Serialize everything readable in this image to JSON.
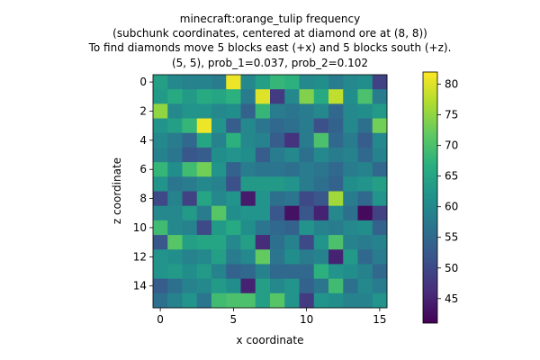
{
  "chart_data": {
    "type": "heatmap",
    "title_lines": [
      "minecraft:orange_tulip frequency",
      "(subchunk coordinates, centered at diamond ore at (8, 8))",
      "To find diamonds move 5 blocks east (+x) and 5 blocks south (+z).",
      "(5, 5), prob_1=0.037, prob_2=0.102"
    ],
    "xlabel": "x coordinate",
    "ylabel": "z coordinate",
    "xticks": [
      "0",
      "5",
      "10",
      "15"
    ],
    "yticks": [
      "0",
      "2",
      "4",
      "6",
      "8",
      "10",
      "12",
      "14"
    ],
    "colorbar": {
      "range": [
        41,
        82
      ],
      "ticks": [
        "45",
        "50",
        "55",
        "60",
        "65",
        "70",
        "75",
        "80"
      ],
      "colormap": "viridis"
    },
    "grid": false,
    "values": [
      [
        64,
        60,
        59,
        59,
        58,
        81,
        60,
        64,
        68,
        67,
        60,
        61,
        58,
        60,
        61,
        49
      ],
      [
        63,
        66,
        63,
        66,
        65,
        67,
        58,
        80,
        48,
        60,
        74,
        66,
        78,
        61,
        70,
        58
      ],
      [
        75,
        60,
        62,
        62,
        60,
        61,
        54,
        68,
        58,
        57,
        58,
        60,
        55,
        60,
        61,
        63
      ],
      [
        62,
        64,
        68,
        81,
        62,
        53,
        60,
        57,
        55,
        56,
        58,
        51,
        54,
        60,
        56,
        73
      ],
      [
        60,
        58,
        55,
        65,
        59,
        67,
        60,
        59,
        53,
        47,
        58,
        70,
        55,
        58,
        53,
        60
      ],
      [
        59,
        57,
        52,
        53,
        61,
        62,
        61,
        53,
        58,
        60,
        56,
        60,
        58,
        59,
        55,
        59
      ],
      [
        68,
        61,
        69,
        73,
        62,
        54,
        58,
        57,
        57,
        56,
        58,
        57,
        55,
        58,
        59,
        55
      ],
      [
        62,
        57,
        58,
        60,
        59,
        51,
        63,
        63,
        63,
        62,
        58,
        56,
        54,
        61,
        62,
        64
      ],
      [
        50,
        59,
        49,
        65,
        60,
        62,
        44,
        62,
        56,
        57,
        50,
        52,
        76,
        58,
        55,
        62
      ],
      [
        60,
        60,
        63,
        58,
        71,
        61,
        62,
        62,
        52,
        43,
        52,
        45,
        60,
        56,
        42,
        49
      ],
      [
        69,
        60,
        59,
        50,
        63,
        66,
        61,
        57,
        55,
        54,
        62,
        59,
        58,
        60,
        61,
        54
      ],
      [
        52,
        71,
        64,
        65,
        65,
        60,
        64,
        46,
        56,
        59,
        50,
        62,
        70,
        59,
        58,
        59
      ],
      [
        62,
        61,
        59,
        60,
        64,
        58,
        60,
        72,
        57,
        61,
        58,
        59,
        45,
        63,
        55,
        58
      ],
      [
        62,
        63,
        61,
        63,
        59,
        54,
        55,
        59,
        55,
        55,
        55,
        67,
        62,
        61,
        59,
        55
      ],
      [
        53,
        56,
        59,
        60,
        63,
        61,
        45,
        64,
        60,
        62,
        54,
        57,
        69,
        56,
        60,
        58
      ],
      [
        56,
        59,
        62,
        57,
        69,
        70,
        70,
        64,
        71,
        62,
        48,
        62,
        61,
        59,
        59,
        62
      ]
    ]
  }
}
